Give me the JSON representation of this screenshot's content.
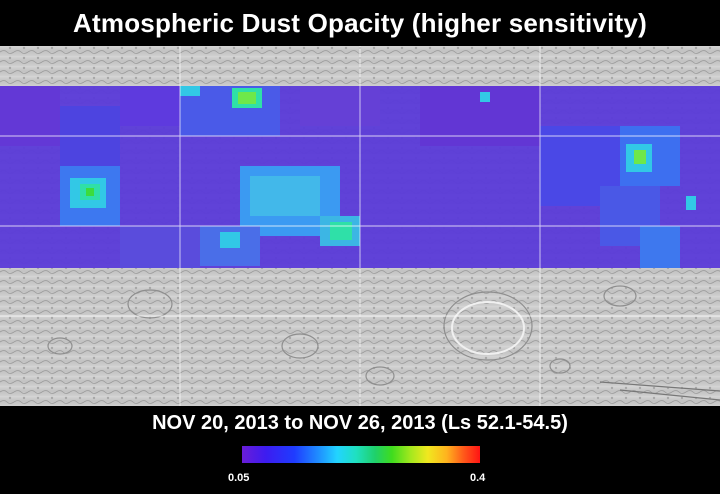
{
  "header": {
    "title": "Atmospheric Dust Opacity (higher sensitivity)"
  },
  "period": {
    "label": "NOV 20, 2013 to NOV 26, 2013 (Ls 52.1-54.5)"
  },
  "legend": {
    "min_label": "0.05",
    "max_label": "0.4",
    "colors": [
      "#6a1dd8",
      "#3d1cf0",
      "#1f3cff",
      "#1f8dff",
      "#22d4ff",
      "#1fe0c0",
      "#1fd06a",
      "#3fdc1e",
      "#a6e81e",
      "#f0e81f",
      "#ffb31e",
      "#ff5a1a",
      "#ff1414"
    ]
  },
  "map": {
    "base_color": "#c8c8c8",
    "overlay_base_color": "#5a3ad8",
    "hotspot_colors": [
      "#32c8e6",
      "#2fe0a8",
      "#3cdc3c",
      "#6ee84a"
    ]
  }
}
